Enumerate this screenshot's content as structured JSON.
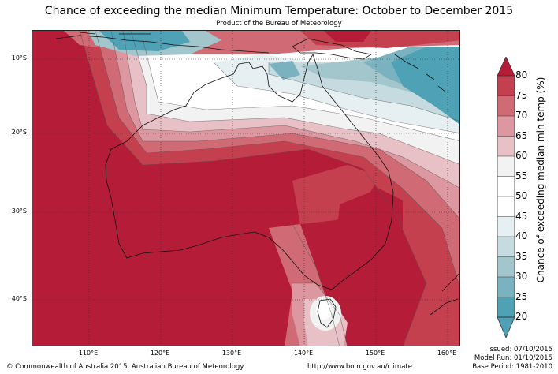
{
  "title": "Chance of exceeding the median Minimum Temperature: October to December 2015",
  "subtitle": "Product of the Bureau of Meteorology",
  "axes": {
    "lat_labels": [
      "10°S",
      "20°S",
      "30°S",
      "40°S"
    ],
    "lon_labels": [
      "110°E",
      "120°E",
      "130°E",
      "140°E",
      "150°E",
      "160°E"
    ]
  },
  "colorbar": {
    "label": "Chance of exceeding median min temp (%)",
    "ticks": [
      "80",
      "75",
      "70",
      "65",
      "60",
      "55",
      "50",
      "45",
      "40",
      "35",
      "30",
      "25",
      "20"
    ],
    "colors": {
      "ge80": "#b51c37",
      "75-80": "#c5404f",
      "70-75": "#d06a74",
      "65-70": "#dc97a0",
      "60-65": "#e8c1c6",
      "55-60": "#f2f2f2",
      "50-55": "#ffffff",
      "45-50": "#ffffff",
      "40-45": "#e6eff1",
      "35-40": "#c5dbdf",
      "30-35": "#a3c5cc",
      "25-30": "#7ab3bf",
      "le25": "#4fa2b5"
    }
  },
  "footer": {
    "copyright": "© Commonwealth of Australia 2015, Australian Bureau of Meteorology",
    "url": "http://www.bom.gov.au/climate",
    "issued": "Issued: 07/10/2015",
    "model_run": "Model Run: 01/10/2015",
    "base_period": "Base Period: 1981-2010"
  }
}
